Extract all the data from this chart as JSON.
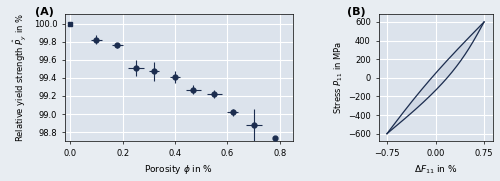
{
  "fig_width": 5.0,
  "fig_height": 1.81,
  "dpi": 100,
  "bg_color": "#e8edf2",
  "plot_bg_color": "#dce3ec",
  "dark_color": "#1c2d4f",
  "panel_A": {
    "label": "(A)",
    "x": [
      0.0,
      0.1,
      0.18,
      0.25,
      0.32,
      0.4,
      0.47,
      0.55,
      0.62,
      0.7,
      0.78
    ],
    "y": [
      100.0,
      99.82,
      99.76,
      99.51,
      99.47,
      99.41,
      99.27,
      99.22,
      99.02,
      98.88,
      98.74
    ],
    "yerr_lo": [
      0.0,
      0.05,
      0.03,
      0.09,
      0.1,
      0.07,
      0.05,
      0.04,
      0.04,
      0.18,
      0.0
    ],
    "yerr_hi": [
      0.0,
      0.05,
      0.03,
      0.09,
      0.1,
      0.07,
      0.05,
      0.04,
      0.04,
      0.18,
      0.0
    ],
    "xerr_lo": [
      0.0,
      0.02,
      0.02,
      0.03,
      0.02,
      0.02,
      0.03,
      0.03,
      0.02,
      0.03,
      0.0
    ],
    "xerr_hi": [
      0.0,
      0.02,
      0.02,
      0.03,
      0.02,
      0.02,
      0.03,
      0.03,
      0.02,
      0.03,
      0.0
    ],
    "xlabel": "Porosity $\\phi$ in %",
    "ylabel": "Relative yield strength $\\hat{P}_y$ in %",
    "xlim": [
      -0.02,
      0.85
    ],
    "ylim": [
      98.7,
      100.1
    ],
    "xticks": [
      0.0,
      0.2,
      0.4,
      0.6,
      0.8
    ],
    "yticks": [
      98.8,
      99.0,
      99.2,
      99.4,
      99.6,
      99.8,
      100.0
    ]
  },
  "panel_B": {
    "label": "(B)",
    "xlabel": "$\\Delta F_{11}$ in %",
    "ylabel": "Stress $P_{11}$ in MPa",
    "xlim": [
      -0.88,
      0.88
    ],
    "ylim": [
      -680,
      680
    ],
    "xticks": [
      -0.75,
      0.0,
      0.75
    ],
    "yticks": [
      -600,
      -400,
      -200,
      0,
      200,
      400,
      600
    ]
  }
}
